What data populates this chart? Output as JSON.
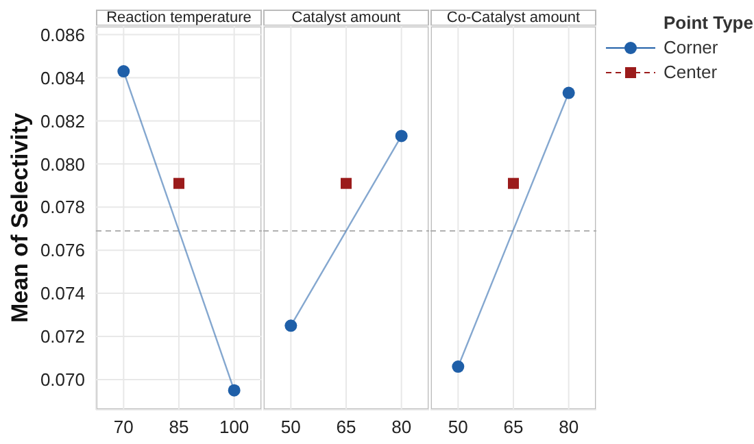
{
  "chart_data": [
    {
      "type": "line",
      "title": "Reaction temperature",
      "ylabel": "Mean of Selectivity",
      "xlim": [
        62.5,
        107.5
      ],
      "xticks": [
        70,
        85,
        100
      ],
      "ylim": [
        0.0686,
        0.0864
      ],
      "yticks": [
        {
          "value": 0.07,
          "label": "0.070"
        },
        {
          "value": 0.072,
          "label": "0.072"
        },
        {
          "value": 0.074,
          "label": "0.074"
        },
        {
          "value": 0.076,
          "label": "0.076"
        },
        {
          "value": 0.078,
          "label": "0.078"
        },
        {
          "value": 0.08,
          "label": "0.080"
        },
        {
          "value": 0.082,
          "label": "0.082"
        },
        {
          "value": 0.084,
          "label": "0.084"
        },
        {
          "value": 0.086,
          "label": "0.086"
        }
      ],
      "grid": true,
      "ref_lines": [
        {
          "axis": "y",
          "value": 0.0769,
          "line_style": "dashed",
          "color": "#b0b0b0"
        }
      ],
      "series": [
        {
          "type": "line",
          "color": "#1f5fa8",
          "x": [
            70,
            100
          ],
          "values": [
            0.0843,
            0.0695
          ],
          "marker": "circle",
          "line_style": "solid"
        },
        {
          "type": "scatter",
          "color": "#9b1b1b",
          "x": [
            85
          ],
          "values": [
            0.0791
          ],
          "marker": "square"
        }
      ]
    },
    {
      "type": "line",
      "title": "Catalyst amount",
      "xlim": [
        42.5,
        87.5
      ],
      "xticks": [
        50,
        65,
        80
      ],
      "ylim": [
        0.0686,
        0.0864
      ],
      "yticks": [
        {
          "value": 0.07,
          "label": null
        },
        {
          "value": 0.072,
          "label": null
        },
        {
          "value": 0.074,
          "label": null
        },
        {
          "value": 0.076,
          "label": null
        },
        {
          "value": 0.078,
          "label": null
        },
        {
          "value": 0.08,
          "label": null
        },
        {
          "value": 0.082,
          "label": null
        },
        {
          "value": 0.084,
          "label": null
        },
        {
          "value": 0.086,
          "label": null
        }
      ],
      "tick_labels": "x",
      "grid": true,
      "ref_lines": [
        {
          "axis": "y",
          "value": 0.0769,
          "line_style": "dashed",
          "color": "#b0b0b0"
        }
      ],
      "series": [
        {
          "type": "line",
          "color": "#1f5fa8",
          "x": [
            50,
            80
          ],
          "values": [
            0.0725,
            0.0813
          ],
          "marker": "circle",
          "line_style": "solid"
        },
        {
          "type": "scatter",
          "color": "#9b1b1b",
          "x": [
            65
          ],
          "values": [
            0.0791
          ],
          "marker": "square"
        }
      ]
    },
    {
      "type": "line",
      "title": "Co-Catalyst amount",
      "xlim": [
        42.5,
        87.5
      ],
      "xticks": [
        50,
        65,
        80
      ],
      "ylim": [
        0.0686,
        0.0864
      ],
      "yticks": [
        {
          "value": 0.07,
          "label": null
        },
        {
          "value": 0.072,
          "label": null
        },
        {
          "value": 0.074,
          "label": null
        },
        {
          "value": 0.076,
          "label": null
        },
        {
          "value": 0.078,
          "label": null
        },
        {
          "value": 0.08,
          "label": null
        },
        {
          "value": 0.082,
          "label": null
        },
        {
          "value": 0.084,
          "label": null
        },
        {
          "value": 0.086,
          "label": null
        }
      ],
      "tick_labels": "x",
      "grid": true,
      "legend": "right",
      "legend_title": "Point Type",
      "ref_lines": [
        {
          "axis": "y",
          "value": 0.0769,
          "line_style": "dashed",
          "color": "#b0b0b0"
        }
      ],
      "series": [
        {
          "type": "line",
          "name": "Corner",
          "color": "#1f5fa8",
          "x": [
            50,
            80
          ],
          "values": [
            0.0706,
            0.0833
          ],
          "marker": "circle",
          "line_style": "solid"
        },
        {
          "type": "scatter",
          "name": "Center",
          "color": "#9b1b1b",
          "x": [
            65
          ],
          "values": [
            0.0791
          ],
          "marker": "square",
          "line_style": "dashed"
        }
      ]
    }
  ]
}
